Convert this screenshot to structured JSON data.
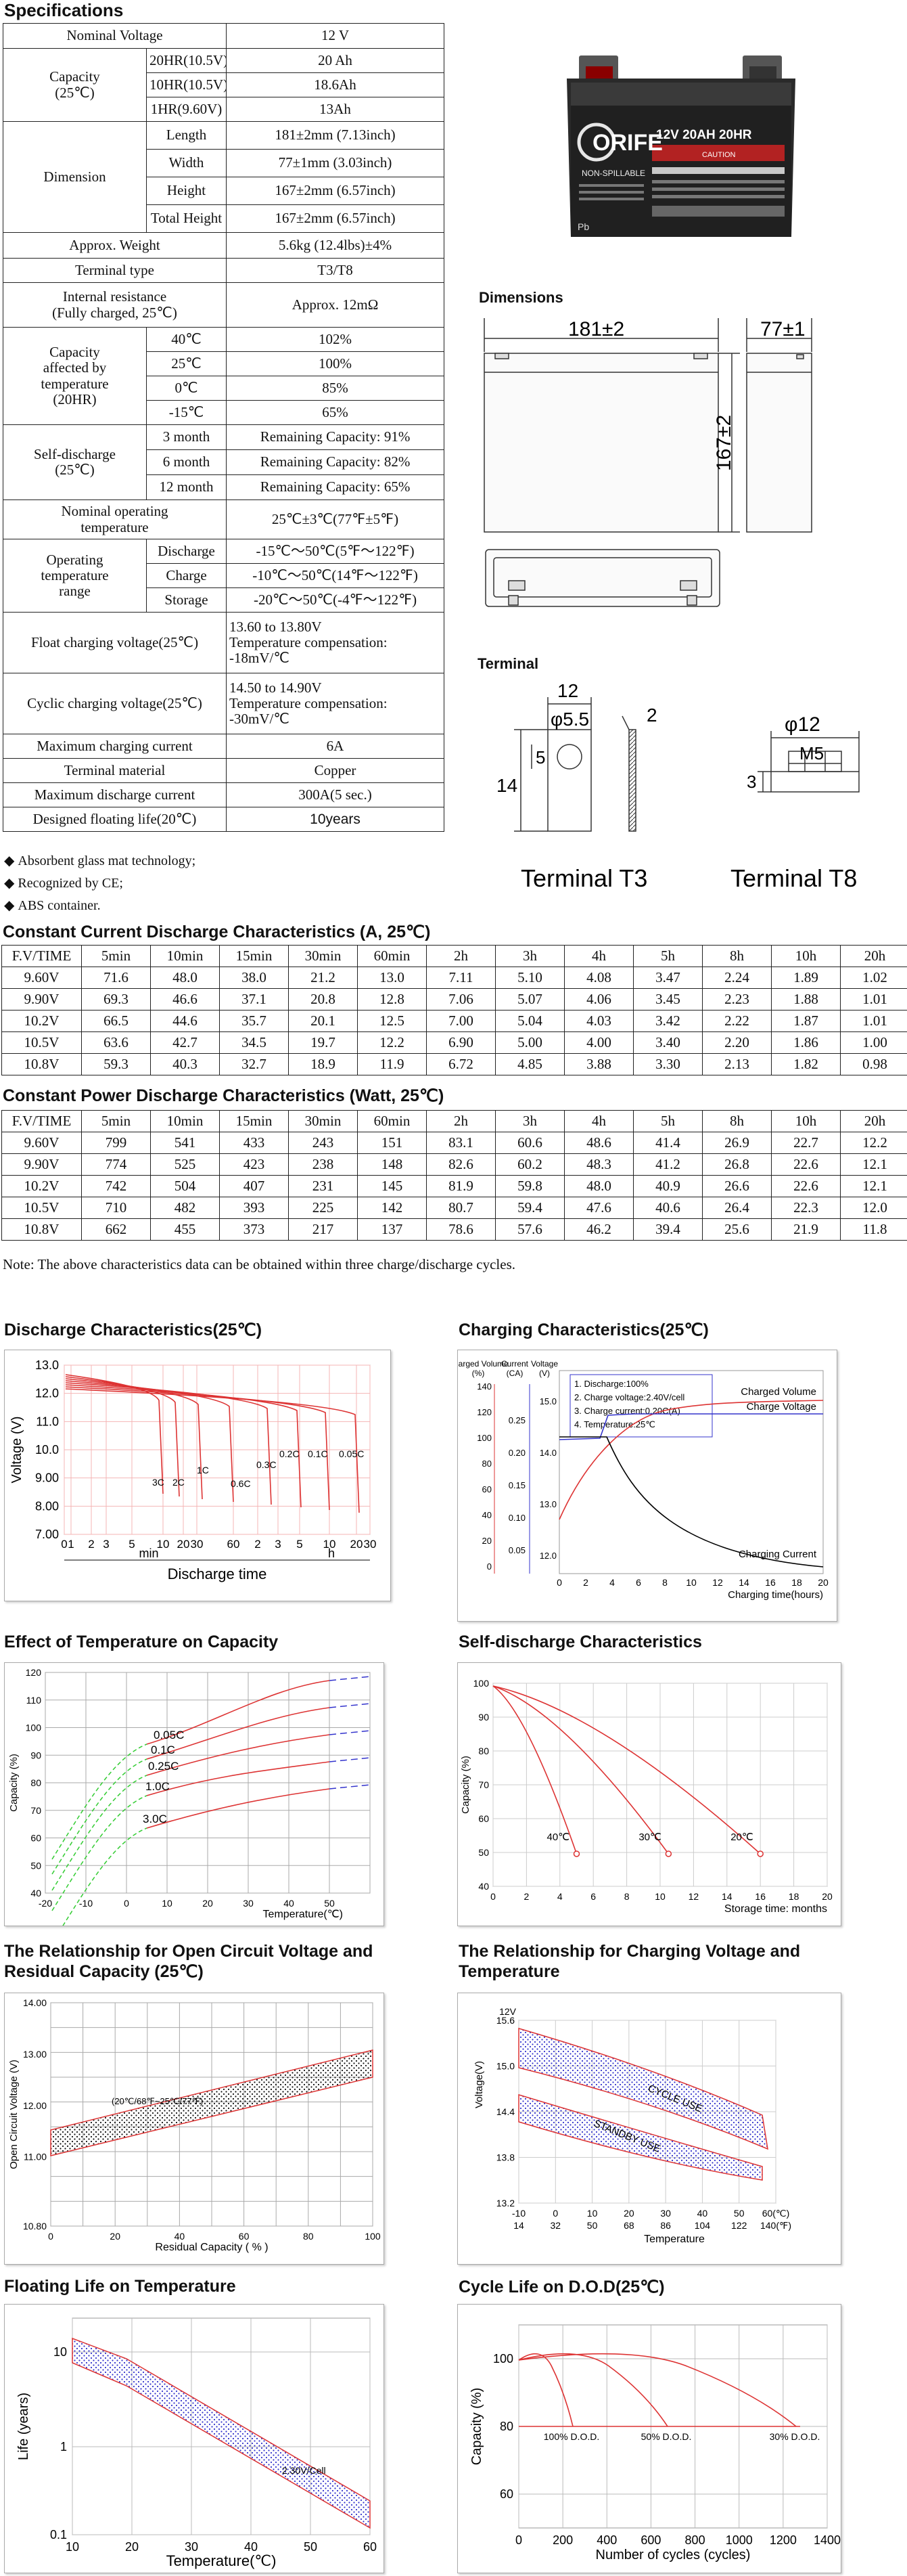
{
  "spec_title": "Specifications",
  "spec": {
    "nominal_voltage": {
      "label": "Nominal Voltage",
      "value": "12 V"
    },
    "capacity": {
      "label": "Capacity\n(25℃)",
      "rows": [
        [
          "20HR(10.5V)",
          "20 Ah"
        ],
        [
          "10HR(10.5V)",
          "18.6Ah"
        ],
        [
          "1HR(9.60V)",
          "13Ah"
        ]
      ]
    },
    "dimension": {
      "label": "Dimension",
      "rows": [
        [
          "Length",
          "181±2mm (7.13inch)"
        ],
        [
          "Width",
          "77±1mm (3.03inch)"
        ],
        [
          "Height",
          "167±2mm (6.57inch)"
        ],
        [
          "Total Height",
          "167±2mm (6.57inch)"
        ]
      ]
    },
    "weight": {
      "label": "Approx. Weight",
      "value": "5.6kg (12.4lbs)±4%"
    },
    "terminal_type": {
      "label": "Terminal type",
      "value": "T3/T8"
    },
    "internal_resistance": {
      "label": "Internal resistance\n(Fully charged, 25℃)",
      "value": "Approx. 12mΩ"
    },
    "cap_temp": {
      "label": "Capacity\naffected by\ntemperature\n(20HR)",
      "rows": [
        [
          "40℃",
          "102%"
        ],
        [
          "25℃",
          "100%"
        ],
        [
          "0℃",
          "85%"
        ],
        [
          "-15℃",
          "65%"
        ]
      ]
    },
    "self_discharge": {
      "label": "Self-discharge\n(25℃)",
      "rows": [
        [
          "3 month",
          "Remaining Capacity: 91%"
        ],
        [
          "6 month",
          "Remaining Capacity: 82%"
        ],
        [
          "12 month",
          "Remaining Capacity: 65%"
        ]
      ]
    },
    "nominal_op_temp": {
      "label": "Nominal operating\ntemperature",
      "value": "25℃±3℃(77℉±5℉)"
    },
    "op_temp_range": {
      "label": "Operating\ntemperature\nrange",
      "rows": [
        [
          "Discharge",
          "-15℃～50℃(5℉～122℉)"
        ],
        [
          "Charge",
          "-10℃～50℃(14℉～122℉)"
        ],
        [
          "Storage",
          "-20℃～50℃(-4℉～122℉)"
        ]
      ]
    },
    "float_voltage": {
      "label": "Float charging voltage(25℃)",
      "value": "13.60 to 13.80V\nTemperature compensation:\n-18mV/℃"
    },
    "cyclic_voltage": {
      "label": "Cyclic charging voltage(25℃)",
      "value": "14.50 to 14.90V\nTemperature compensation:\n-30mV/℃"
    },
    "max_charge_current": {
      "label": "Maximum charging current",
      "value": "6A"
    },
    "terminal_material": {
      "label": "Terminal material",
      "value": "Copper"
    },
    "max_discharge_current": {
      "label": "Maximum discharge current",
      "value": "300A(5 sec.)"
    },
    "floating_life": {
      "label": "Designed floating life(20℃)",
      "value": "10years"
    }
  },
  "bullets": [
    "Absorbent glass mat technology;",
    "Recognized by CE;",
    "ABS container."
  ],
  "product": {
    "brand": "ORIFE",
    "model_text": "12V 20AH 20HR",
    "nonspill": "NON-SPILLABLE",
    "caution": "CAUTION",
    "pb": "Pb"
  },
  "dimensions": {
    "title": "Dimensions",
    "length": "181±2",
    "width": "77±1",
    "height": "167±2"
  },
  "terminal": {
    "title": "Terminal",
    "t3_label": "Terminal T3",
    "t8_label": "Terminal T8",
    "t3_dims": [
      "12",
      "φ5.5",
      "2",
      "5",
      "14"
    ],
    "t8_dims": [
      "φ12",
      "M5",
      "3"
    ]
  },
  "cc_table": {
    "title": "Constant Current Discharge Characteristics (A, 25℃)",
    "headers": [
      "F.V/TIME",
      "5min",
      "10min",
      "15min",
      "30min",
      "60min",
      "2h",
      "3h",
      "4h",
      "5h",
      "8h",
      "10h",
      "20h"
    ],
    "rows": [
      [
        "9.60V",
        "71.6",
        "48.0",
        "38.0",
        "21.2",
        "13.0",
        "7.11",
        "5.10",
        "4.08",
        "3.47",
        "2.24",
        "1.89",
        "1.02"
      ],
      [
        "9.90V",
        "69.3",
        "46.6",
        "37.1",
        "20.8",
        "12.8",
        "7.06",
        "5.07",
        "4.06",
        "3.45",
        "2.23",
        "1.88",
        "1.01"
      ],
      [
        "10.2V",
        "66.5",
        "44.6",
        "35.7",
        "20.1",
        "12.5",
        "7.00",
        "5.04",
        "4.03",
        "3.42",
        "2.22",
        "1.87",
        "1.01"
      ],
      [
        "10.5V",
        "63.6",
        "42.7",
        "34.5",
        "19.7",
        "12.2",
        "6.90",
        "5.00",
        "4.00",
        "3.40",
        "2.20",
        "1.86",
        "1.00"
      ],
      [
        "10.8V",
        "59.3",
        "40.3",
        "32.7",
        "18.9",
        "11.9",
        "6.72",
        "4.85",
        "3.88",
        "3.30",
        "2.13",
        "1.82",
        "0.98"
      ]
    ]
  },
  "cp_table": {
    "title": "Constant Power Discharge Characteristics (Watt, 25℃)",
    "headers": [
      "F.V/TIME",
      "5min",
      "10min",
      "15min",
      "30min",
      "60min",
      "2h",
      "3h",
      "4h",
      "5h",
      "8h",
      "10h",
      "20h"
    ],
    "rows": [
      [
        "9.60V",
        "799",
        "541",
        "433",
        "243",
        "151",
        "83.1",
        "60.6",
        "48.6",
        "41.4",
        "26.9",
        "22.7",
        "12.2"
      ],
      [
        "9.90V",
        "774",
        "525",
        "423",
        "238",
        "148",
        "82.6",
        "60.2",
        "48.3",
        "41.2",
        "26.8",
        "22.6",
        "12.1"
      ],
      [
        "10.2V",
        "742",
        "504",
        "407",
        "231",
        "145",
        "81.9",
        "59.8",
        "48.0",
        "40.9",
        "26.6",
        "22.6",
        "12.1"
      ],
      [
        "10.5V",
        "710",
        "482",
        "393",
        "225",
        "142",
        "80.7",
        "59.4",
        "47.6",
        "40.6",
        "26.4",
        "22.3",
        "12.0"
      ],
      [
        "10.8V",
        "662",
        "455",
        "373",
        "217",
        "137",
        "78.6",
        "57.6",
        "46.2",
        "39.4",
        "25.6",
        "21.9",
        "11.8"
      ]
    ]
  },
  "note": "Note: The above characteristics data can be obtained within three charge/discharge cycles.",
  "charts": {
    "discharge": {
      "title": "Discharge Characteristics(25℃)",
      "ylabel": "Voltage (V)",
      "xlabel": "Discharge time",
      "min": "min",
      "h": "h",
      "yticks": [
        "13.0",
        "12.0",
        "11.0",
        "10.0",
        "9.00",
        "8.00",
        "7.00"
      ],
      "xticks": [
        "0",
        "1",
        "2",
        "3",
        "5",
        "10",
        "20",
        "30",
        "60",
        "2",
        "3",
        "5",
        "10",
        "20",
        "30"
      ],
      "rates": [
        "3C",
        "2C",
        "1C",
        "0.6C",
        "0.3C",
        "0.2C",
        "0.1C",
        "0.05C"
      ]
    },
    "charging": {
      "title": "Charging Characteristics(25℃)",
      "axis1": "Charged Volume",
      "axis1u": "(%)",
      "axis2": "Current",
      "axis2u": "(CA)",
      "axis3": "Voltage",
      "axis3u": "(V)",
      "legend": [
        "1. Discharge:100%",
        "2. Charge voltage:2.40V/cell",
        "3. Charge current:0.20C(A)",
        "4. Temperature:25℃"
      ],
      "series": [
        "Charged Volume",
        "Charge Voltage",
        "Charging Current"
      ],
      "xlabel": "Charging time(hours)",
      "y1": [
        "140",
        "120",
        "100",
        "80",
        "60",
        "40",
        "20",
        "0"
      ],
      "y2": [
        "0.25",
        "0.20",
        "0.15",
        "0.10",
        "0.05"
      ],
      "y3": [
        "15.0",
        "14.0",
        "13.0",
        "12.0"
      ],
      "xticks": [
        "0",
        "2",
        "4",
        "6",
        "8",
        "10",
        "12",
        "14",
        "16",
        "18",
        "20"
      ]
    },
    "temp_cap": {
      "title": "Effect of Temperature on Capacity",
      "ylabel": "Capacity (%)",
      "xlabel": "Temperature(℃)",
      "curves": [
        "0.05C",
        "0.1C",
        "0.25C",
        "1.0C",
        "3.0C"
      ],
      "yticks": [
        "120",
        "110",
        "100",
        "90",
        "80",
        "70",
        "60",
        "50",
        "40"
      ],
      "xticks": [
        "-20",
        "-10",
        "0",
        "10",
        "20",
        "30",
        "40",
        "50"
      ]
    },
    "self_dis": {
      "title": "Self-discharge Characteristics",
      "ylabel": "Capacity (%)",
      "xlabel": "Storage time: months",
      "curves": [
        "40℃",
        "30℃",
        "20℃"
      ],
      "yticks": [
        "100",
        "90",
        "80",
        "70",
        "60",
        "50",
        "40"
      ],
      "xticks": [
        "0",
        "2",
        "4",
        "6",
        "8",
        "10",
        "12",
        "14",
        "16",
        "18",
        "20"
      ]
    },
    "ocv": {
      "title": "The Relationship for Open Circuit Voltage and Residual Capacity (25℃)",
      "ylabel": "Open Circuit Voltage (V)",
      "xlabel": "Residual Capacity ( % )",
      "band": "(20℃/68℉~25℃/77℉)",
      "yticks": [
        "14.00",
        "13.00",
        "12.00",
        "11.00",
        "10.80"
      ],
      "xticks": [
        "0",
        "20",
        "40",
        "60",
        "80",
        "100"
      ]
    },
    "chg_volt": {
      "title": "The Relationship for Charging Voltage and Temperature",
      "ylabel": "Voltage(V)",
      "xlabel": "Temperature",
      "unit": "12V",
      "bands": [
        "CYCLE USE",
        "STANDBY USE"
      ],
      "yticks": [
        "15.6",
        "15.0",
        "14.4",
        "13.8",
        "13.2"
      ],
      "xc": [
        "-10",
        "0",
        "10",
        "20",
        "30",
        "40",
        "50",
        "60(℃)"
      ],
      "xf": [
        "14",
        "32",
        "50",
        "68",
        "86",
        "104",
        "122",
        "140(℉)"
      ]
    },
    "float_life": {
      "title": "Floating Life on Temperature",
      "ylabel": "Life (years)",
      "xlabel": "Temperature(℃)",
      "label": "2.30V/Cell",
      "yticks": [
        "10",
        "1",
        "0.1"
      ],
      "xticks": [
        "10",
        "20",
        "30",
        "40",
        "50",
        "60"
      ]
    },
    "cycle_life": {
      "title": "Cycle Life on D.O.D(25℃)",
      "ylabel": "Capacity (%)",
      "xlabel": "Number of cycles (cycles)",
      "curves": [
        "100% D.O.D.",
        "50% D.O.D.",
        "30% D.O.D."
      ],
      "yticks": [
        "100",
        "80",
        "60"
      ],
      "xticks": [
        "0",
        "200",
        "400",
        "600",
        "800",
        "1000",
        "1200",
        "1400"
      ]
    }
  }
}
